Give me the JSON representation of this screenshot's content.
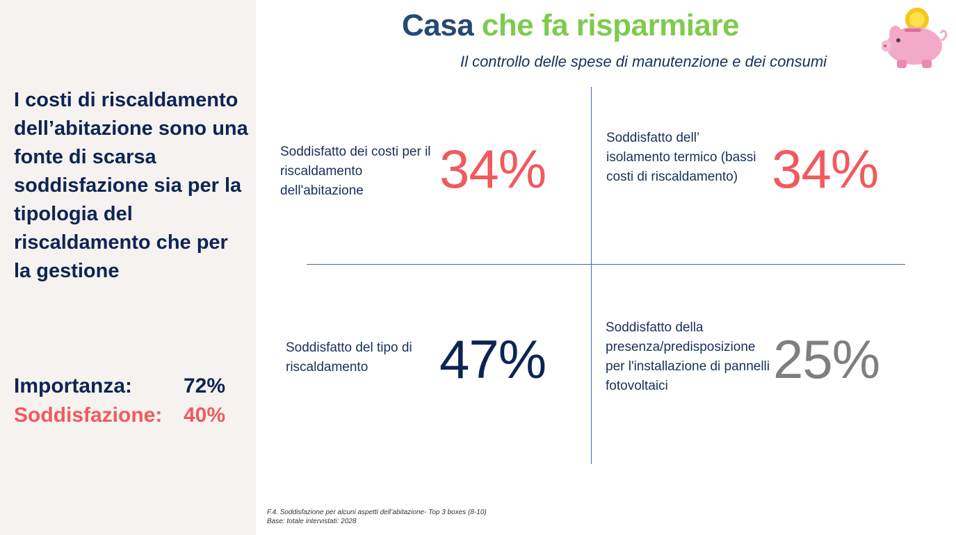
{
  "sidebar": {
    "text": "I costi di riscaldamento dell’abitazione sono una fonte di scarsa soddisfazione sia per la tipologia del riscaldamento che per la gestione",
    "importance_label": "Importanza:",
    "importance_value": "72%",
    "satisfaction_label": "Soddisfazione:",
    "satisfaction_value": "40%"
  },
  "header": {
    "title_part1": "Casa",
    "title_part2": "che fa risparmiare",
    "subtitle": "Il controllo delle spese di manutenzione e dei consumi"
  },
  "quadrants": [
    {
      "label": "Soddisfatto dei costi per il riscaldamento dell'abitazione",
      "value": "34%",
      "color": "#f05a5e"
    },
    {
      "label": "Soddisfatto dell’ isolamento termico (bassi costi di riscaldamento)",
      "value": "34%",
      "color": "#f05a5e"
    },
    {
      "label": "Soddisfatto del tipo di riscaldamento",
      "value": "47%",
      "color": "#0d2454"
    },
    {
      "label": "Soddisfatto della presenza/predisposizione per l'installazione di pannelli fotovoltaici",
      "value": "25%",
      "color": "#7f7f7f"
    }
  ],
  "footnote": {
    "line1": "F.4. Soddisfazione per alcuni aspetti dell’abitazione- Top 3 boxes (8-10)",
    "line2": "Base: totale intervistati: 2028"
  },
  "icons": {
    "piggy_bank": "piggy-bank-icon"
  }
}
